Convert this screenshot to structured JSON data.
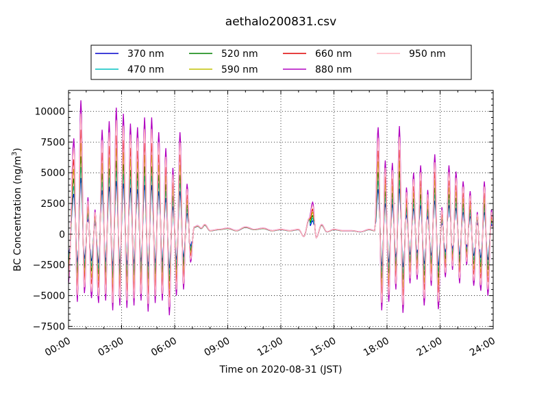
{
  "chart_data": {
    "type": "line",
    "title": "aethalo200831.csv",
    "xlabel": "Time on 2020-08-31 (JST)",
    "ylabel": "BC Concentration (ng/m",
    "ylabel_sup": "3",
    "ylabel_end": ")",
    "xlim": [
      0,
      24
    ],
    "ylim": [
      -7700,
      11700
    ],
    "x_ticks": [
      0,
      3,
      6,
      9,
      12,
      15,
      18,
      21,
      24
    ],
    "x_tick_labels": [
      "00:00",
      "03:00",
      "06:00",
      "09:00",
      "12:00",
      "15:00",
      "18:00",
      "21:00",
      "24:00"
    ],
    "y_ticks": [
      -7500,
      -5000,
      -2500,
      0,
      2500,
      5000,
      7500,
      10000
    ],
    "y_tick_labels": [
      "−7500",
      "−5000",
      "−2500",
      "0",
      "2500",
      "5000",
      "7500",
      "10000"
    ],
    "grid": true,
    "legend_position": "top-center",
    "series": [
      {
        "name": "370 nm",
        "color": "#0000cc",
        "scale": 0.42
      },
      {
        "name": "470 nm",
        "color": "#00c0c0",
        "scale": 0.5
      },
      {
        "name": "520 nm",
        "color": "#008000",
        "scale": 0.58
      },
      {
        "name": "590 nm",
        "color": "#c0c000",
        "scale": 0.68
      },
      {
        "name": "660 nm",
        "color": "#dd0000",
        "scale": 0.78
      },
      {
        "name": "880 nm",
        "color": "#b000c0",
        "scale": 1.0
      },
      {
        "name": "950 nm",
        "color": "#ffb6c1",
        "scale": 0.9
      }
    ],
    "reference_series": {
      "name": "880 nm",
      "x": [
        0.0,
        0.3,
        0.5,
        0.7,
        0.9,
        1.1,
        1.3,
        1.5,
        1.7,
        1.9,
        2.1,
        2.3,
        2.5,
        2.7,
        2.9,
        3.1,
        3.3,
        3.5,
        3.7,
        3.9,
        4.1,
        4.3,
        4.5,
        4.7,
        4.9,
        5.1,
        5.3,
        5.5,
        5.7,
        5.9,
        6.1,
        6.3,
        6.5,
        6.7,
        6.9,
        7.1,
        7.3,
        7.5,
        7.7,
        8.0,
        8.5,
        9.0,
        9.5,
        10.0,
        10.5,
        11.0,
        11.5,
        12.0,
        12.5,
        13.0,
        13.3,
        13.6,
        13.8,
        14.0,
        14.3,
        14.6,
        15.0,
        15.5,
        16.0,
        16.5,
        17.0,
        17.3,
        17.5,
        17.7,
        17.9,
        18.1,
        18.3,
        18.5,
        18.7,
        18.9,
        19.1,
        19.3,
        19.5,
        19.7,
        19.9,
        20.1,
        20.3,
        20.5,
        20.7,
        20.9,
        21.1,
        21.3,
        21.5,
        21.7,
        21.9,
        22.1,
        22.3,
        22.5,
        22.7,
        22.9,
        23.1,
        23.3,
        23.5,
        23.7,
        23.9,
        24.0
      ],
      "y": [
        -4000,
        7800,
        -5500,
        10900,
        -4800,
        3000,
        -5200,
        2000,
        -5600,
        8500,
        -5400,
        9200,
        -6200,
        10300,
        -5800,
        9800,
        -6000,
        9000,
        -5800,
        8700,
        -5400,
        9500,
        -6300,
        9500,
        -5600,
        8300,
        -5400,
        7000,
        -6600,
        5400,
        -5000,
        8300,
        -4500,
        4100,
        -2300,
        600,
        700,
        500,
        800,
        300,
        400,
        500,
        300,
        600,
        400,
        500,
        300,
        400,
        300,
        400,
        -200,
        1300,
        2600,
        -300,
        800,
        200,
        400,
        300,
        300,
        200,
        400,
        300,
        8700,
        -6200,
        6000,
        -5500,
        5800,
        -4500,
        8800,
        -6400,
        3800,
        -4000,
        5000,
        -3700,
        5600,
        -5800,
        3600,
        -4200,
        6500,
        -6100,
        2200,
        -3500,
        5600,
        -2900,
        5100,
        -4000,
        4300,
        -2500,
        3500,
        -4200,
        1800,
        -4600,
        4300,
        -5000,
        2000,
        500
      ]
    }
  }
}
